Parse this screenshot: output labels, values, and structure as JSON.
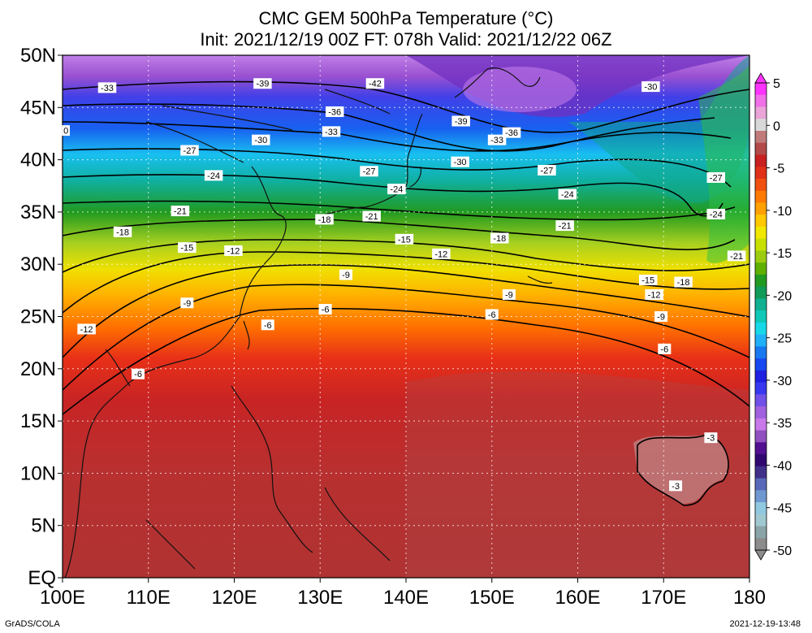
{
  "title": {
    "line1": "CMC GEM 500hPa Temperature (°C)",
    "line2": "Init: 2021/12/19 00Z  FT: 078h  Valid: 2021/12/22 06Z"
  },
  "map": {
    "lon_range": [
      100,
      180
    ],
    "lat_range": [
      0,
      50
    ],
    "lon_labels": [
      "100E",
      "110E",
      "120E",
      "130E",
      "140E",
      "150E",
      "160E",
      "170E",
      "180"
    ],
    "lat_labels": [
      "EQ",
      "5N",
      "10N",
      "15N",
      "20N",
      "25N",
      "30N",
      "35N",
      "40N",
      "45N",
      "50N"
    ],
    "contour_labels": [
      {
        "text": "-33",
        "lon": 105.2,
        "lat": 46.9
      },
      {
        "text": "-39",
        "lon": 123.3,
        "lat": 47.3
      },
      {
        "text": "-42",
        "lon": 136.4,
        "lat": 47.3
      },
      {
        "text": "-36",
        "lon": 131.7,
        "lat": 44.6
      },
      {
        "text": "-39",
        "lon": 146.4,
        "lat": 43.7
      },
      {
        "text": "-36",
        "lon": 152.3,
        "lat": 42.6
      },
      {
        "text": "-33",
        "lon": 131.3,
        "lat": 42.7
      },
      {
        "text": "-33",
        "lon": 150.6,
        "lat": 41.9
      },
      {
        "text": "-30",
        "lon": 168.5,
        "lat": 47.0
      },
      {
        "text": "-30",
        "lon": 123.1,
        "lat": 41.9
      },
      {
        "text": "-30",
        "lon": 146.3,
        "lat": 39.8
      },
      {
        "text": "-27",
        "lon": 114.8,
        "lat": 40.9
      },
      {
        "text": "-27",
        "lon": 135.7,
        "lat": 38.9
      },
      {
        "text": "-27",
        "lon": 156.4,
        "lat": 39.0
      },
      {
        "text": "-27",
        "lon": 176.1,
        "lat": 38.3
      },
      {
        "text": "-24",
        "lon": 117.6,
        "lat": 38.5
      },
      {
        "text": "-24",
        "lon": 138.9,
        "lat": 37.2
      },
      {
        "text": "-24",
        "lon": 158.8,
        "lat": 36.7
      },
      {
        "text": "-24",
        "lon": 176.1,
        "lat": 34.8
      },
      {
        "text": "-21",
        "lon": 113.7,
        "lat": 35.1
      },
      {
        "text": "-21",
        "lon": 136.0,
        "lat": 34.6
      },
      {
        "text": "-21",
        "lon": 158.5,
        "lat": 33.7
      },
      {
        "text": "-21",
        "lon": 178.5,
        "lat": 30.8
      },
      {
        "text": "-18",
        "lon": 107.0,
        "lat": 33.1
      },
      {
        "text": "-18",
        "lon": 130.5,
        "lat": 34.3
      },
      {
        "text": "-18",
        "lon": 150.9,
        "lat": 32.5
      },
      {
        "text": "-18",
        "lon": 172.3,
        "lat": 28.3
      },
      {
        "text": "-15",
        "lon": 114.5,
        "lat": 31.6
      },
      {
        "text": "-15",
        "lon": 139.8,
        "lat": 32.4
      },
      {
        "text": "-15",
        "lon": 168.2,
        "lat": 28.5
      },
      {
        "text": "-12",
        "lon": 119.9,
        "lat": 31.3
      },
      {
        "text": "-12",
        "lon": 144.1,
        "lat": 31.0
      },
      {
        "text": "-12",
        "lon": 168.9,
        "lat": 27.1
      },
      {
        "text": "-12",
        "lon": 102.8,
        "lat": 23.8
      },
      {
        "text": "-9",
        "lon": 133.0,
        "lat": 29.0
      },
      {
        "text": "-9",
        "lon": 152.0,
        "lat": 27.1
      },
      {
        "text": "-9",
        "lon": 114.5,
        "lat": 26.3
      },
      {
        "text": "-9",
        "lon": 169.7,
        "lat": 25.0
      },
      {
        "text": "-6",
        "lon": 130.6,
        "lat": 25.7
      },
      {
        "text": "-6",
        "lon": 123.9,
        "lat": 24.2
      },
      {
        "text": "-6",
        "lon": 150.0,
        "lat": 25.2
      },
      {
        "text": "-6",
        "lon": 170.1,
        "lat": 21.9
      },
      {
        "text": "-6",
        "lon": 108.8,
        "lat": 19.5
      },
      {
        "text": "-3",
        "lon": 175.5,
        "lat": 13.4
      },
      {
        "text": "-3",
        "lon": 171.4,
        "lat": 8.8
      },
      {
        "text": "0",
        "lon": 100.4,
        "lat": 42.8
      }
    ]
  },
  "colorbar": {
    "labels": [
      "5",
      "0",
      "-5",
      "-10",
      "-15",
      "-20",
      "-25",
      "-30",
      "-35",
      "-40",
      "-45",
      "-50"
    ],
    "colors": [
      "#ff33ff",
      "#f070e8",
      "#eaa4d8",
      "#d8d8d8",
      "#c07a7a",
      "#b24a4a",
      "#c82020",
      "#e03018",
      "#f05010",
      "#ff7a00",
      "#ffa000",
      "#ffc800",
      "#f0e800",
      "#c8e000",
      "#9ccc10",
      "#60b000",
      "#209a20",
      "#109a58",
      "#10b090",
      "#10c8b8",
      "#18d8e8",
      "#20b0f8",
      "#1878f0",
      "#1848f0",
      "#2020e0",
      "#3838f0",
      "#7050e8",
      "#a060e0",
      "#c878e8",
      "#9050c0",
      "#501090",
      "#300870",
      "#40308a",
      "#5868b8",
      "#7098d0",
      "#90c8e0",
      "#a0c8d0",
      "#8aa4a8",
      "#8c8c8c"
    ]
  },
  "footer": {
    "left": "GrADS/COLA",
    "right": "2021-12-19-13:48"
  }
}
